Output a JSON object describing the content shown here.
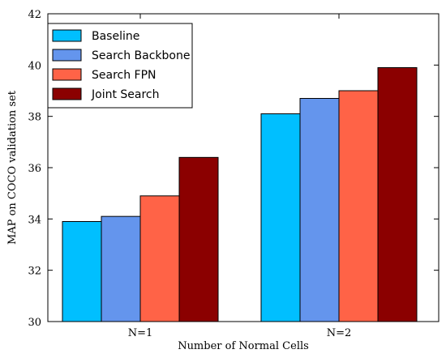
{
  "chart_data": {
    "type": "bar",
    "title": "",
    "xlabel": "Number of Normal Cells",
    "ylabel": "MAP on COCO validation set",
    "categories": [
      "N=1",
      "N=2"
    ],
    "ylim": [
      30,
      42
    ],
    "yticks": [
      "30",
      "32",
      "34",
      "36",
      "38",
      "40",
      "42"
    ],
    "grid": false,
    "legend_position": "top-left",
    "series": [
      {
        "name": "Baseline",
        "color": "#00BFFF",
        "values": [
          33.9,
          38.1
        ]
      },
      {
        "name": "Search Backbone",
        "color": "#6495ED",
        "values": [
          34.1,
          38.7
        ]
      },
      {
        "name": "Search FPN",
        "color": "#FF6347",
        "values": [
          34.9,
          39.0
        ]
      },
      {
        "name": "Joint Search",
        "color": "#8B0000",
        "values": [
          36.4,
          39.9
        ]
      }
    ]
  }
}
